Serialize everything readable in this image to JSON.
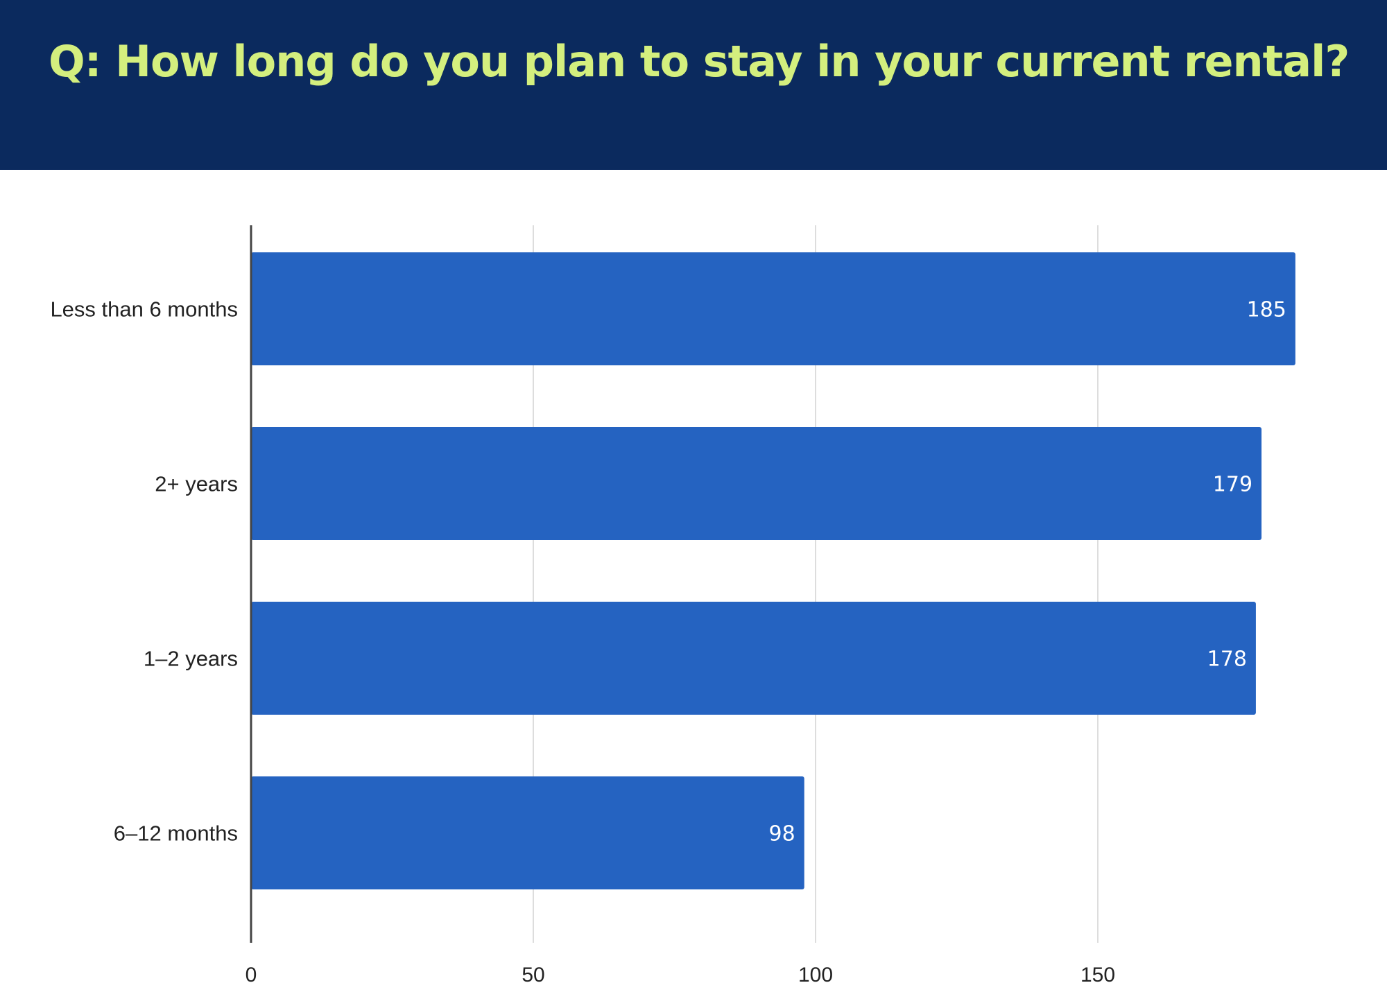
{
  "header": {
    "title": "Q: How long do you plan to stay in your current rental?"
  },
  "colors": {
    "header_bg": "#0b2a5e",
    "title": "#d4ef7e",
    "bar": "#2563c1",
    "grid": "#dddddd",
    "axis": "#444444"
  },
  "chart_data": {
    "type": "bar",
    "orientation": "horizontal",
    "categories": [
      "Less than 6 months",
      "2+ years",
      "1–2 years",
      "6–12 months"
    ],
    "values": [
      185,
      179,
      178,
      98
    ],
    "data_labels": [
      "185",
      "179",
      "178",
      "98"
    ],
    "xlim": [
      0,
      200
    ],
    "xticks": [
      0,
      50,
      100,
      150
    ],
    "xtick_labels": [
      "0",
      "50",
      "100",
      "150"
    ],
    "grid": true,
    "legend": "none"
  }
}
